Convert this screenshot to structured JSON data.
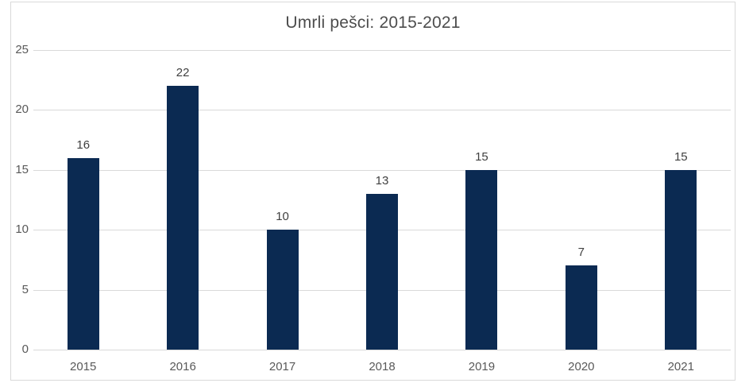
{
  "chart_data": {
    "type": "bar",
    "title": "Umrli pešci: 2015-2021",
    "categories": [
      "2015",
      "2016",
      "2017",
      "2018",
      "2019",
      "2020",
      "2021"
    ],
    "values": [
      16,
      22,
      10,
      13,
      15,
      7,
      15
    ],
    "data_labels": [
      16,
      22,
      10,
      13,
      15,
      7,
      15
    ],
    "xlabel": "",
    "ylabel": "",
    "ylim": [
      0,
      25
    ],
    "yticks": [
      0,
      5,
      10,
      15,
      20,
      25
    ],
    "grid": "horizontal",
    "legend": "none",
    "colors": {
      "bar": "#0b2a52",
      "gridline": "#d9d9d9",
      "frame_border": "#d9d9d9",
      "axis_tick_labels": "#595959",
      "value_labels": "#404040",
      "title": "#4d4d4d",
      "background": "#ffffff"
    }
  }
}
